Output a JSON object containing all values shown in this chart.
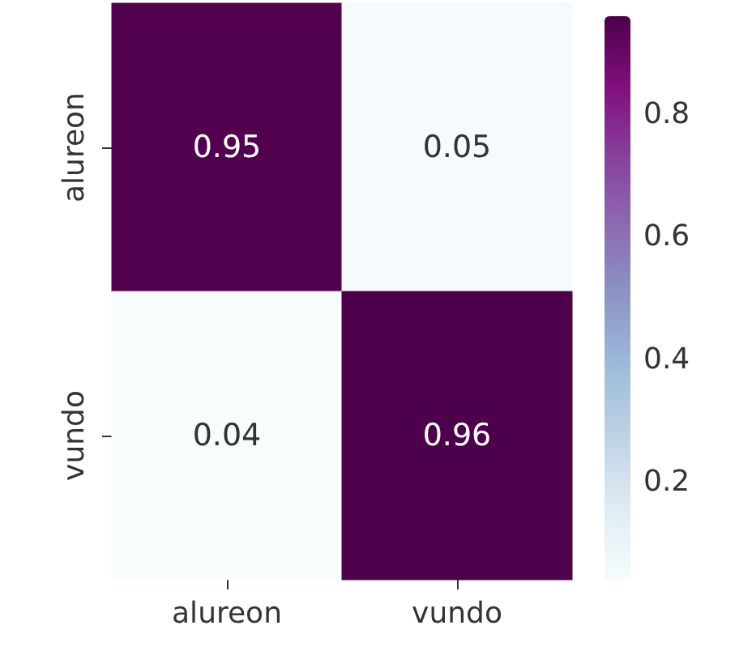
{
  "chart_data": {
    "type": "heatmap",
    "categories": [
      "alureon",
      "vundo"
    ],
    "y_categories": [
      "alureon",
      "vundo"
    ],
    "cells": [
      [
        0.95,
        0.05
      ],
      [
        0.04,
        0.96
      ]
    ],
    "data_labels": true,
    "clim": [
      0.04,
      0.96
    ],
    "cticks": [
      0.2,
      0.4,
      0.6,
      0.8
    ]
  }
}
